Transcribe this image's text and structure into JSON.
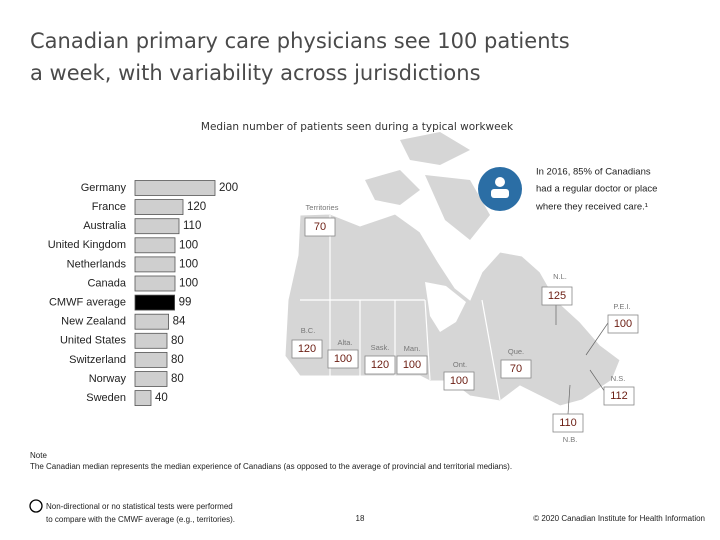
{
  "title_lines": [
    "Canadian primary care physicians see 100 patients",
    "a week, with variability across jurisdictions"
  ],
  "chart_data": {
    "type": "bar",
    "orientation": "horizontal",
    "subtitle": "Median number of patients seen during a typical workweek",
    "categories": [
      "Germany",
      "France",
      "Australia",
      "United Kingdom",
      "Netherlands",
      "Canada",
      "CMWF average",
      "New Zealand",
      "United States",
      "Switzerland",
      "Norway",
      "Sweden"
    ],
    "values": [
      200,
      120,
      110,
      100,
      100,
      100,
      99,
      84,
      80,
      80,
      80,
      40
    ],
    "colors": [
      "#cfcfcf",
      "#cfcfcf",
      "#cfcfcf",
      "#cfcfcf",
      "#cfcfcf",
      "#cfcfcf",
      "#000000",
      "#cfcfcf",
      "#cfcfcf",
      "#cfcfcf",
      "#cfcfcf",
      "#cfcfcf"
    ]
  },
  "map": {
    "callout_lines": [
      "In 2016, 85% of Canadians",
      "had a regular doctor or place",
      "where they received care.¹"
    ],
    "regions": [
      {
        "label": "Territories",
        "value": 70
      },
      {
        "label": "B.C.",
        "value": 120
      },
      {
        "label": "Alta.",
        "value": 100
      },
      {
        "label": "Sask.",
        "value": 120
      },
      {
        "label": "Man.",
        "value": 100
      },
      {
        "label": "Ont.",
        "value": 100
      },
      {
        "label": "Que.",
        "value": 70
      },
      {
        "label": "N.L.",
        "value": 125
      },
      {
        "label": "P.E.I.",
        "value": 100
      },
      {
        "label": "N.S.",
        "value": 112
      },
      {
        "label": "N.B.",
        "value": 110
      }
    ]
  },
  "note": {
    "heading": "Note",
    "text": "The Canadian median represents the median experience of Canadians (as opposed to the average of provincial and territorial medians)."
  },
  "legend_lines": [
    "Non-directional or no statistical tests were performed",
    "to compare with the CMWF average (e.g., territories)."
  ],
  "page_number": "18",
  "copyright": "© 2020 Canadian Institute for Health Information"
}
